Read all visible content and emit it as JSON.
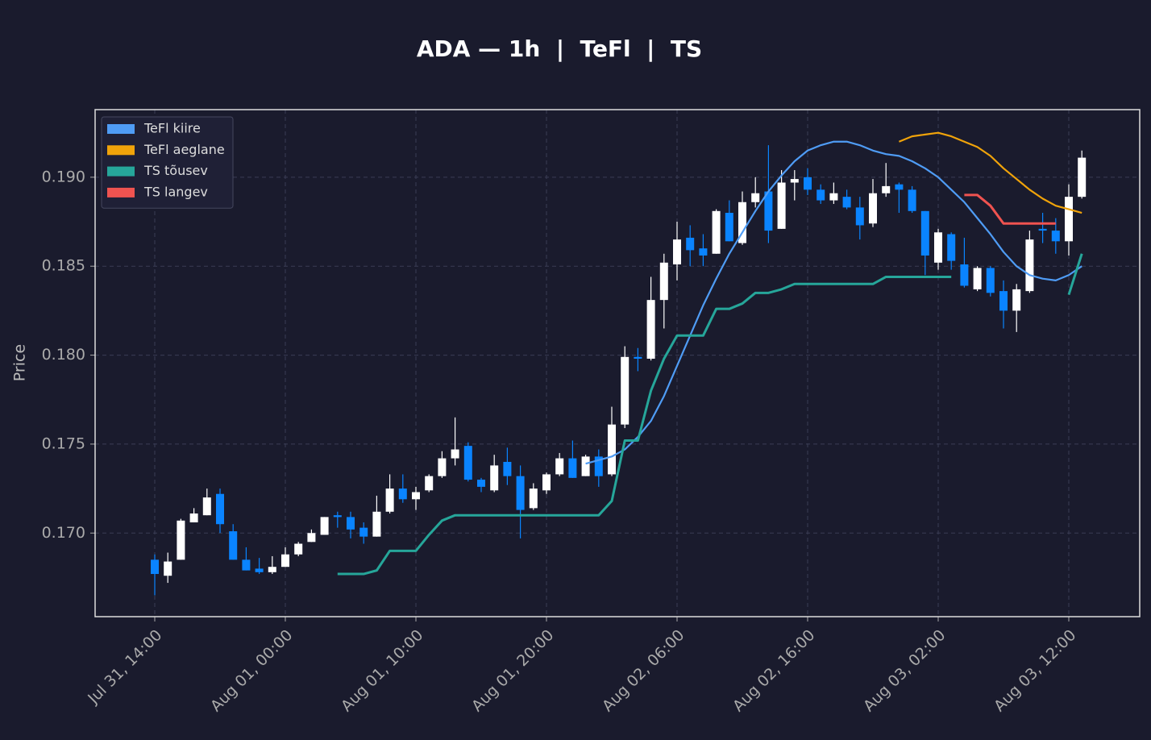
{
  "chart_data": {
    "type": "candlestick",
    "title": "ADA — 1h  |  TeFl  |  TS",
    "ylabel": "Price",
    "x": [
      "Jul 31, 14:00",
      "Jul 31, 15:00",
      "Jul 31, 16:00",
      "Jul 31, 17:00",
      "Jul 31, 18:00",
      "Jul 31, 19:00",
      "Jul 31, 20:00",
      "Jul 31, 21:00",
      "Jul 31, 22:00",
      "Jul 31, 23:00",
      "Aug 01, 00:00",
      "Aug 01, 01:00",
      "Aug 01, 02:00",
      "Aug 01, 03:00",
      "Aug 01, 04:00",
      "Aug 01, 05:00",
      "Aug 01, 06:00",
      "Aug 01, 07:00",
      "Aug 01, 08:00",
      "Aug 01, 09:00",
      "Aug 01, 10:00",
      "Aug 01, 11:00",
      "Aug 01, 12:00",
      "Aug 01, 13:00",
      "Aug 01, 14:00",
      "Aug 01, 15:00",
      "Aug 01, 16:00",
      "Aug 01, 17:00",
      "Aug 01, 18:00",
      "Aug 01, 19:00",
      "Aug 01, 20:00",
      "Aug 01, 21:00",
      "Aug 01, 22:00",
      "Aug 01, 23:00",
      "Aug 02, 00:00",
      "Aug 02, 01:00",
      "Aug 02, 02:00",
      "Aug 02, 03:00",
      "Aug 02, 04:00",
      "Aug 02, 05:00",
      "Aug 02, 06:00",
      "Aug 02, 07:00",
      "Aug 02, 08:00",
      "Aug 02, 09:00",
      "Aug 02, 10:00",
      "Aug 02, 11:00",
      "Aug 02, 12:00",
      "Aug 02, 13:00",
      "Aug 02, 14:00",
      "Aug 02, 15:00",
      "Aug 02, 16:00",
      "Aug 02, 17:00",
      "Aug 02, 18:00",
      "Aug 02, 19:00",
      "Aug 02, 20:00",
      "Aug 02, 21:00",
      "Aug 02, 22:00",
      "Aug 02, 23:00",
      "Aug 03, 00:00",
      "Aug 03, 01:00",
      "Aug 03, 02:00",
      "Aug 03, 03:00",
      "Aug 03, 04:00",
      "Aug 03, 05:00",
      "Aug 03, 06:00",
      "Aug 03, 07:00",
      "Aug 03, 08:00",
      "Aug 03, 09:00",
      "Aug 03, 10:00",
      "Aug 03, 11:00",
      "Aug 03, 12:00",
      "Aug 03, 13:00"
    ],
    "open": [
      0.1685,
      0.1676,
      0.1685,
      0.1706,
      0.171,
      0.1722,
      0.1701,
      0.1685,
      0.168,
      0.1678,
      0.1681,
      0.1688,
      0.1695,
      0.1699,
      0.171,
      0.1709,
      0.1703,
      0.1698,
      0.1712,
      0.1725,
      0.1719,
      0.1724,
      0.1732,
      0.1742,
      0.1749,
      0.173,
      0.1724,
      0.174,
      0.1732,
      0.1714,
      0.1724,
      0.1733,
      0.1742,
      0.1732,
      0.1743,
      0.1733,
      0.1761,
      0.1799,
      0.1798,
      0.1831,
      0.1851,
      0.1866,
      0.186,
      0.1857,
      0.188,
      0.1863,
      0.1886,
      0.1892,
      0.1871,
      0.1897,
      0.19,
      0.1893,
      0.1887,
      0.1889,
      0.1883,
      0.1874,
      0.1891,
      0.1896,
      0.1893,
      0.1881,
      0.1852,
      0.1868,
      0.1851,
      0.1837,
      0.1849,
      0.1836,
      0.1825,
      0.1836,
      0.1871,
      0.187,
      0.1864,
      0.1889
    ],
    "high": [
      0.1688,
      0.1689,
      0.1708,
      0.1714,
      0.1725,
      0.1725,
      0.1705,
      0.1692,
      0.1686,
      0.1687,
      0.1692,
      0.1695,
      0.1702,
      0.1709,
      0.1712,
      0.1712,
      0.1706,
      0.1721,
      0.1733,
      0.1733,
      0.1726,
      0.1733,
      0.1746,
      0.1765,
      0.1751,
      0.1731,
      0.1744,
      0.1748,
      0.1738,
      0.1728,
      0.1734,
      0.1745,
      0.1752,
      0.1744,
      0.1747,
      0.1771,
      0.1805,
      0.1804,
      0.1844,
      0.1857,
      0.1875,
      0.1873,
      0.1868,
      0.1882,
      0.1887,
      0.1892,
      0.19,
      0.1918,
      0.1904,
      0.1904,
      0.1905,
      0.1896,
      0.1897,
      0.1893,
      0.1889,
      0.1899,
      0.1908,
      0.1897,
      0.1895,
      0.1881,
      0.1871,
      0.1869,
      0.1866,
      0.185,
      0.185,
      0.1842,
      0.184,
      0.187,
      0.188,
      0.1877,
      0.1896,
      0.1915
    ],
    "low": [
      0.1665,
      0.1672,
      0.1685,
      0.1706,
      0.171,
      0.17,
      0.1685,
      0.1679,
      0.1677,
      0.1677,
      0.1681,
      0.1687,
      0.1695,
      0.1699,
      0.1703,
      0.1697,
      0.1694,
      0.1698,
      0.1711,
      0.1717,
      0.1713,
      0.1723,
      0.1731,
      0.1738,
      0.1729,
      0.1723,
      0.1723,
      0.1727,
      0.1697,
      0.1713,
      0.1722,
      0.1732,
      0.1731,
      0.1732,
      0.1726,
      0.1732,
      0.1759,
      0.1791,
      0.1797,
      0.1815,
      0.1842,
      0.185,
      0.185,
      0.1857,
      0.1864,
      0.1862,
      0.1883,
      0.1863,
      0.1871,
      0.1887,
      0.189,
      0.1885,
      0.1885,
      0.1882,
      0.1865,
      0.1872,
      0.1889,
      0.188,
      0.188,
      0.1845,
      0.1848,
      0.1848,
      0.1838,
      0.1836,
      0.1833,
      0.1815,
      0.1813,
      0.1835,
      0.1863,
      0.1857,
      0.1856,
      0.1888
    ],
    "close": [
      0.1677,
      0.1684,
      0.1707,
      0.1711,
      0.172,
      0.1705,
      0.1685,
      0.1679,
      0.1678,
      0.1681,
      0.1688,
      0.1694,
      0.17,
      0.1709,
      0.1709,
      0.1702,
      0.1698,
      0.1712,
      0.1725,
      0.1719,
      0.1723,
      0.1732,
      0.1742,
      0.1747,
      0.173,
      0.1726,
      0.1738,
      0.1732,
      0.1713,
      0.1725,
      0.1733,
      0.1742,
      0.1731,
      0.1743,
      0.1732,
      0.1761,
      0.1799,
      0.1798,
      0.1831,
      0.1852,
      0.1865,
      0.1859,
      0.1856,
      0.1881,
      0.1864,
      0.1886,
      0.1891,
      0.187,
      0.1897,
      0.1899,
      0.1893,
      0.1887,
      0.1891,
      0.1883,
      0.1873,
      0.1891,
      0.1895,
      0.1893,
      0.1881,
      0.1856,
      0.1869,
      0.1853,
      0.1839,
      0.1849,
      0.1835,
      0.1825,
      0.1837,
      0.1865,
      0.187,
      0.1864,
      0.1889,
      0.1911
    ],
    "up_color": "#ffffff",
    "down_color": "#0a84ff",
    "series": [
      {
        "name": "TeFl kiire",
        "color": "#4f9cf5",
        "values": [
          null,
          null,
          null,
          null,
          null,
          null,
          null,
          null,
          null,
          null,
          null,
          null,
          null,
          null,
          null,
          null,
          null,
          null,
          null,
          null,
          null,
          null,
          null,
          null,
          null,
          null,
          null,
          null,
          null,
          null,
          null,
          null,
          null,
          0.1739,
          0.1741,
          0.1743,
          0.1747,
          0.1754,
          0.1763,
          0.1777,
          0.1794,
          0.1811,
          0.1828,
          0.1843,
          0.1857,
          0.1869,
          0.1881,
          0.1892,
          0.1901,
          0.1909,
          0.1915,
          0.1918,
          0.192,
          0.192,
          0.1918,
          0.1915,
          0.1913,
          0.1912,
          0.1909,
          0.1905,
          0.19,
          0.1893,
          0.1886,
          0.1877,
          0.1868,
          0.1858,
          0.185,
          0.1845,
          0.1843,
          0.1842,
          0.1845,
          0.185
        ]
      },
      {
        "name": "TeFl aeglane",
        "color": "#f0a30a",
        "values": [
          null,
          null,
          null,
          null,
          null,
          null,
          null,
          null,
          null,
          null,
          null,
          null,
          null,
          null,
          null,
          null,
          null,
          null,
          null,
          null,
          null,
          null,
          null,
          null,
          null,
          null,
          null,
          null,
          null,
          null,
          null,
          null,
          null,
          null,
          null,
          null,
          null,
          null,
          null,
          null,
          null,
          null,
          null,
          null,
          null,
          null,
          null,
          null,
          null,
          null,
          null,
          null,
          null,
          null,
          null,
          null,
          null,
          0.192,
          0.1923,
          0.1924,
          0.1925,
          0.1923,
          0.192,
          0.1917,
          0.1912,
          0.1905,
          0.1899,
          0.1893,
          0.1888,
          0.1884,
          0.1882,
          0.188
        ]
      },
      {
        "name": "TS tõusev",
        "color": "#26a69a",
        "values": [
          null,
          null,
          null,
          null,
          null,
          null,
          null,
          null,
          null,
          null,
          null,
          null,
          null,
          null,
          0.1677,
          0.1677,
          0.1677,
          0.1679,
          0.169,
          0.169,
          0.169,
          0.1699,
          0.1707,
          0.171,
          0.171,
          0.171,
          0.171,
          0.171,
          0.171,
          0.171,
          0.171,
          0.171,
          0.171,
          0.171,
          0.171,
          0.1718,
          0.1752,
          0.1752,
          0.178,
          0.1798,
          0.1811,
          0.1811,
          0.1811,
          0.1826,
          0.1826,
          0.1829,
          0.1835,
          0.1835,
          0.1837,
          0.184,
          0.184,
          0.184,
          0.184,
          0.184,
          0.184,
          0.184,
          0.1844,
          0.1844,
          0.1844,
          0.1844,
          0.1844,
          0.1844,
          null,
          null,
          null,
          null,
          null,
          null,
          null,
          null,
          0.1834,
          0.1857
        ]
      },
      {
        "name": "TS langev",
        "color": "#ef5350",
        "values": [
          null,
          null,
          null,
          null,
          null,
          null,
          null,
          null,
          null,
          null,
          null,
          null,
          null,
          null,
          null,
          null,
          null,
          null,
          null,
          null,
          null,
          null,
          null,
          null,
          null,
          null,
          null,
          null,
          null,
          null,
          null,
          null,
          null,
          null,
          null,
          null,
          null,
          null,
          null,
          null,
          null,
          null,
          null,
          null,
          null,
          null,
          null,
          null,
          null,
          null,
          null,
          null,
          null,
          null,
          null,
          null,
          null,
          null,
          null,
          null,
          null,
          null,
          0.189,
          0.189,
          0.1884,
          0.1874,
          0.1874,
          0.1874,
          0.1874,
          0.1874,
          null,
          null
        ]
      }
    ],
    "ylim": [
      0.1653,
      0.1938
    ],
    "yticks": [
      {
        "value": 0.17,
        "label": "0.170"
      },
      {
        "value": 0.175,
        "label": "0.175"
      },
      {
        "value": 0.18,
        "label": "0.180"
      },
      {
        "value": 0.185,
        "label": "0.185"
      },
      {
        "value": 0.19,
        "label": "0.190"
      }
    ],
    "xticks": [
      "Jul 31, 14:00",
      "Aug 01, 00:00",
      "Aug 01, 10:00",
      "Aug 01, 20:00",
      "Aug 02, 06:00",
      "Aug 02, 16:00",
      "Aug 03, 02:00",
      "Aug 03, 12:00"
    ],
    "grid": true,
    "legend": "upper left"
  }
}
